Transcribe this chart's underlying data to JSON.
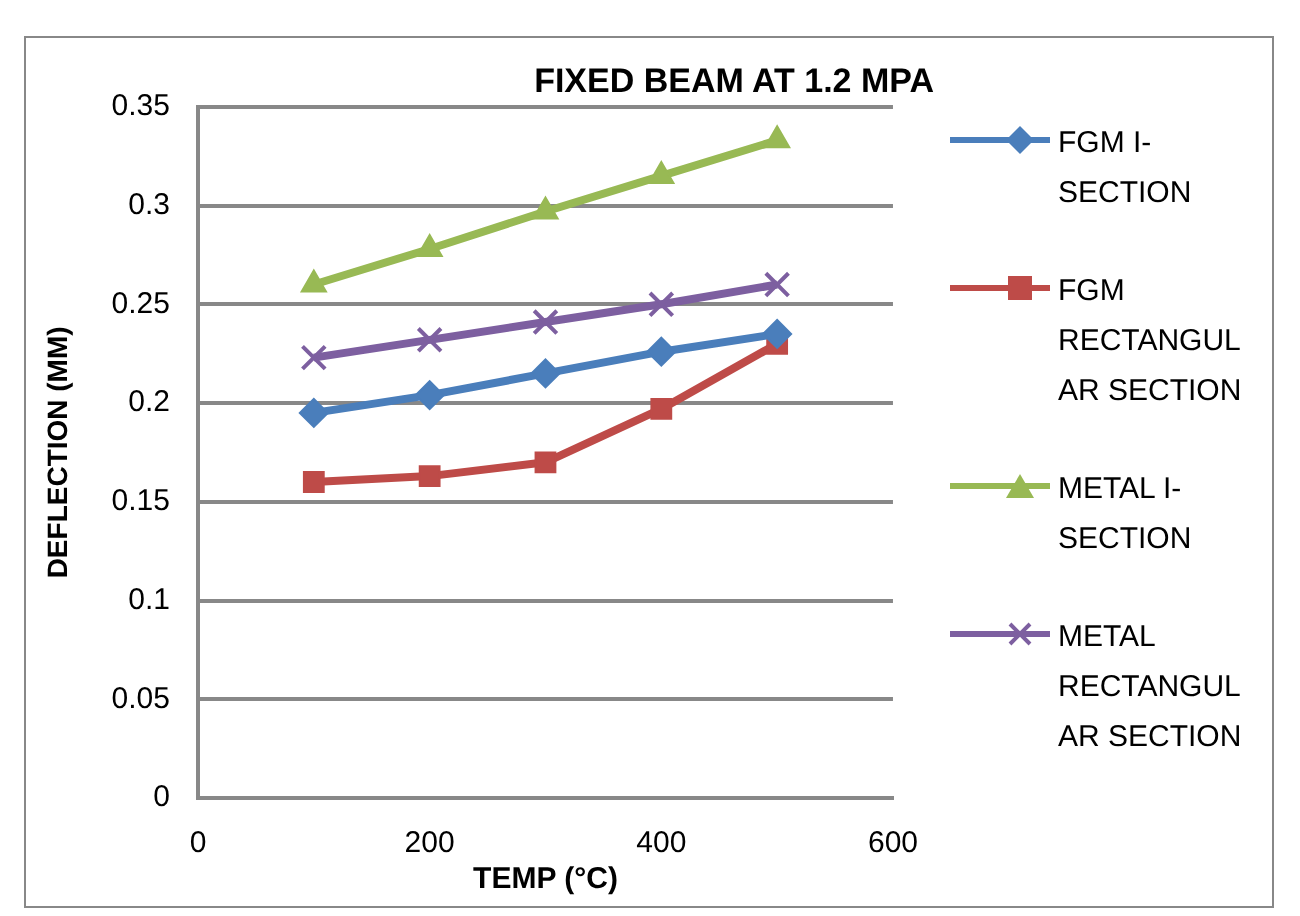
{
  "chart_data": {
    "type": "line",
    "title": "FIXED BEAM AT 1.2 MPA",
    "xlabel": "TEMP (°C)",
    "ylabel": "DEFLECTION (MM)",
    "x": [
      100,
      200,
      300,
      400,
      500
    ],
    "series": [
      {
        "name": "FGM I-SECTION",
        "color": "#4a7ebb",
        "marker": "diamond",
        "values": [
          0.195,
          0.204,
          0.215,
          0.226,
          0.235
        ]
      },
      {
        "name": "FGM RECTANGULAR SECTION",
        "color": "#be4b48",
        "marker": "square",
        "values": [
          0.16,
          0.163,
          0.17,
          0.197,
          0.23
        ]
      },
      {
        "name": "METAL I-SECTION",
        "color": "#98b954",
        "marker": "triangle",
        "values": [
          0.26,
          0.278,
          0.297,
          0.315,
          0.333
        ]
      },
      {
        "name": "METAL RECTANGULAR SECTION",
        "color": "#7d5fa0",
        "marker": "cross",
        "values": [
          0.223,
          0.232,
          0.241,
          0.25,
          0.26
        ]
      }
    ],
    "xlim": [
      0,
      600
    ],
    "xticks": [
      0,
      200,
      400,
      600
    ],
    "ylim": [
      0,
      0.35
    ],
    "yticks": [
      0,
      0.05,
      0.1,
      0.15,
      0.2,
      0.25,
      0.3,
      0.35
    ],
    "grid": "y",
    "legend": "right",
    "line_style": "solid"
  }
}
